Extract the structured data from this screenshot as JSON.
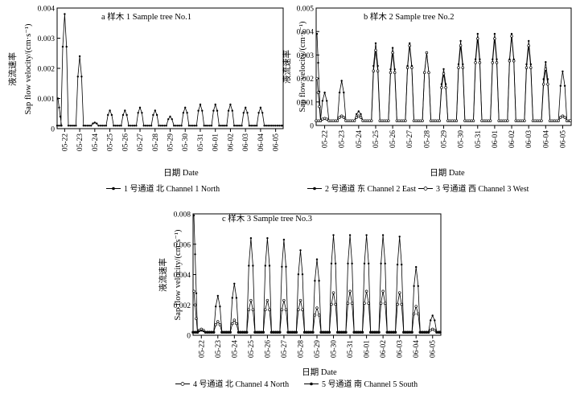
{
  "chart_data": [
    {
      "type": "line",
      "panel_title": "a 样木 1  Sample tree No.1",
      "ylabel_cn": "液流速率",
      "ylabel": "Sap flow velocity/(cm·s⁻¹)",
      "xlabel": "日期  Date",
      "ylim": [
        0,
        0.004
      ],
      "yticks": [
        "0",
        "0.001",
        "0.002",
        "0.003",
        "0.004"
      ],
      "categories": [
        "05-22",
        "05-23",
        "05-24",
        "05-25",
        "05-26",
        "05-27",
        "05-28",
        "05-29",
        "05-30",
        "05-31",
        "06-01",
        "06-02",
        "06-03",
        "06-04",
        "06-05"
      ],
      "series": [
        {
          "name": "1 号通道 北 Channel 1 North",
          "marker": "filled",
          "night": 0.0001,
          "start": 0.001,
          "peaks": [
            0.0038,
            0.0024,
            0.0002,
            0.0006,
            0.0006,
            0.0007,
            0.0006,
            0.0004,
            0.0007,
            0.0008,
            0.0008,
            0.0008,
            0.0007,
            0.0007,
            0.0001
          ]
        }
      ]
    },
    {
      "type": "line",
      "panel_title": "b 样木 2  Sample tree No.2",
      "ylabel_cn": "液流速率",
      "ylabel": "Sap flow velocity/(cm·s⁻¹)",
      "xlabel": "日期  Date",
      "ylim": [
        0,
        0.005
      ],
      "yticks": [
        "0",
        "0.001",
        "0.002",
        "0.003",
        "0.004",
        "0.005"
      ],
      "categories": [
        "05-22",
        "05-23",
        "05-24",
        "05-25",
        "05-26",
        "05-27",
        "05-28",
        "05-29",
        "05-30",
        "05-31",
        "06-01",
        "06-02",
        "06-03",
        "06-04",
        "06-05"
      ],
      "series": [
        {
          "name": "2 号通道 东 Channel 2 East",
          "marker": "filled",
          "night": 0.0002,
          "start": 0.0039,
          "peaks": [
            0.0014,
            0.0019,
            0.0006,
            0.0035,
            0.0033,
            0.0035,
            0.0031,
            0.0024,
            0.0036,
            0.0039,
            0.0039,
            0.0039,
            0.0036,
            0.0027,
            0.0023
          ]
        },
        {
          "name": "3 号通道 西 Channel 3 West",
          "marker": "open",
          "night": 0.0002,
          "start": 0.002,
          "peaks": [
            0.0003,
            0.0004,
            0.0004,
            0.0032,
            0.0031,
            0.0034,
            0.0031,
            0.0022,
            0.0034,
            0.0037,
            0.0037,
            0.0038,
            0.0034,
            0.0024,
            0.0004
          ]
        }
      ]
    },
    {
      "type": "line",
      "panel_title": "c 样木 3  Sample tree No.3",
      "ylabel_cn": "液流速率",
      "ylabel": "Sap flow velocity/(cm·s⁻¹)",
      "xlabel": "日期  Date",
      "ylim": [
        0,
        0.008
      ],
      "yticks": [
        "0",
        "0.002",
        "0.004",
        "0.006",
        "0.008"
      ],
      "categories": [
        "05-22",
        "05-23",
        "05-24",
        "05-25",
        "05-26",
        "05-27",
        "05-28",
        "05-29",
        "05-30",
        "05-31",
        "06-01",
        "06-02",
        "06-03",
        "06-04",
        "06-05"
      ],
      "series": [
        {
          "name": "4 号通道 北 Channel 4 North",
          "marker": "open",
          "night": 0.0002,
          "start": 0.0029,
          "peaks": [
            0.0004,
            0.0009,
            0.001,
            0.0023,
            0.0023,
            0.0023,
            0.0023,
            0.0018,
            0.0028,
            0.0029,
            0.0029,
            0.0029,
            0.0028,
            0.0019,
            0.0004
          ]
        },
        {
          "name": "5 号通道 南 Channel 5 South",
          "marker": "filled",
          "night": 0.0002,
          "start": 0.0079,
          "peaks": [
            0.0003,
            0.0026,
            0.0034,
            0.0064,
            0.0064,
            0.0063,
            0.0056,
            0.005,
            0.0066,
            0.0066,
            0.0066,
            0.0066,
            0.0065,
            0.0045,
            0.0013
          ]
        }
      ]
    }
  ]
}
